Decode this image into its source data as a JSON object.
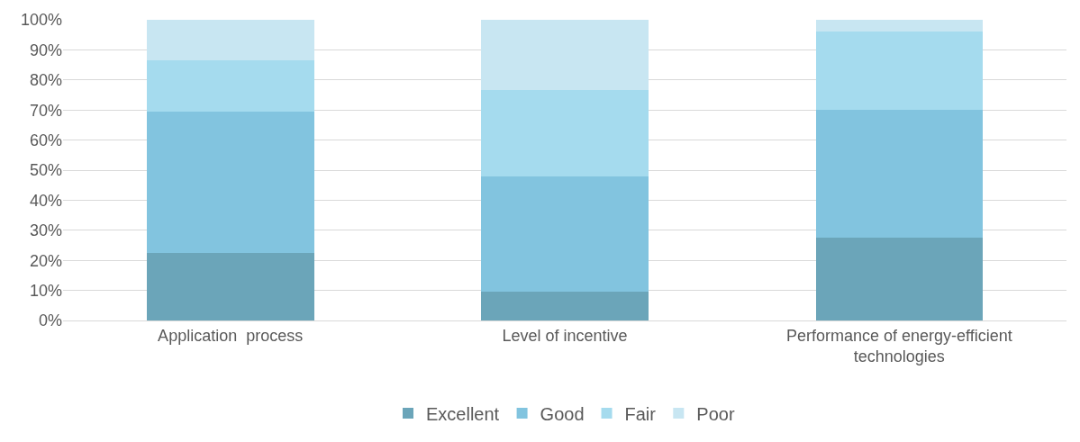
{
  "chart_data": {
    "type": "bar",
    "stacked": true,
    "categories": [
      "Application  process",
      "Level of incentive",
      "Performance of energy-efficient technologies"
    ],
    "series": [
      {
        "name": "Excellent",
        "color": "#6ba5b9",
        "values": [
          22.5,
          9.5,
          27.5
        ]
      },
      {
        "name": "Good",
        "color": "#82c4df",
        "values": [
          47,
          38.5,
          42.5
        ]
      },
      {
        "name": "Fair",
        "color": "#a5dbee",
        "values": [
          17,
          28.5,
          26
        ]
      },
      {
        "name": "Poor",
        "color": "#c8e6f2",
        "values": [
          13.5,
          23.5,
          4
        ]
      }
    ],
    "ylim": [
      0,
      100
    ],
    "yticks": [
      {
        "value": 0,
        "label": "0%"
      },
      {
        "value": 10,
        "label": "10%"
      },
      {
        "value": 20,
        "label": "20%"
      },
      {
        "value": 30,
        "label": "30%"
      },
      {
        "value": 40,
        "label": "40%"
      },
      {
        "value": 50,
        "label": "50%"
      },
      {
        "value": 60,
        "label": "60%"
      },
      {
        "value": 70,
        "label": "70%"
      },
      {
        "value": 80,
        "label": "80%"
      },
      {
        "value": 90,
        "label": "90%"
      },
      {
        "value": 100,
        "label": "100%"
      }
    ],
    "grid": "y",
    "legend": "bottom"
  }
}
